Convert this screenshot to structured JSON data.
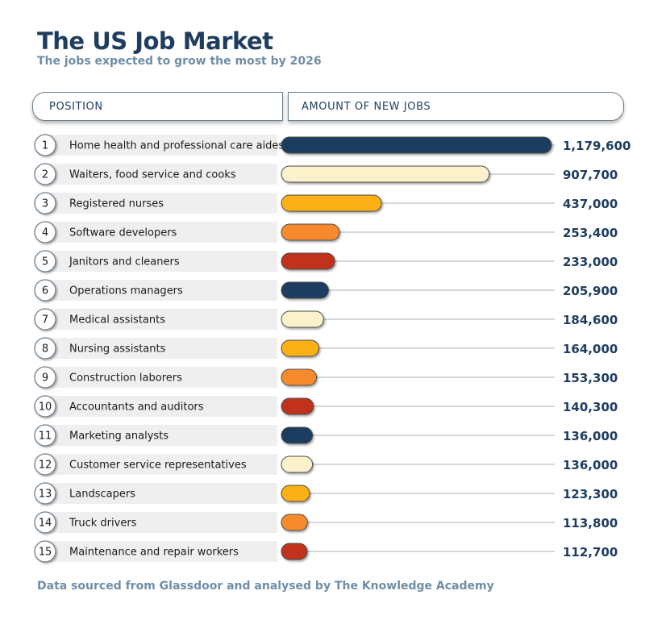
{
  "title": "The US Job Market",
  "subtitle": "The jobs expected to grow the most by 2026",
  "headers": {
    "position": "POSITION",
    "amount": "AMOUNT OF NEW JOBS"
  },
  "footer": "Data sourced from Glassdoor and analysed by The Knowledge Academy",
  "colors": {
    "navy": "#1f3d5f",
    "cream": "#fbf2cc",
    "gold": "#fbb116",
    "orange": "#f88a2e",
    "red": "#c0311f",
    "row_band": "#efefef",
    "value_text": "#1e3d5f"
  },
  "chart_data": {
    "type": "bar",
    "orientation": "horizontal",
    "title": "The US Job Market",
    "subtitle": "The jobs expected to grow the most by 2026",
    "rank_labels": [
      "1",
      "2",
      "3",
      "4",
      "5",
      "6",
      "7",
      "8",
      "9",
      "10",
      "11",
      "12",
      "13",
      "14",
      "15"
    ],
    "categories": [
      "Home health and professional care aides",
      "Waiters, food service and cooks",
      "Registered nurses",
      "Software developers",
      "Janitors and cleaners",
      "Operations managers",
      "Medical assistants",
      "Nursing assistants",
      "Construction laborers",
      "Accountants and auditors",
      "Marketing analysts",
      "Customer service representatives",
      "Landscapers",
      "Truck drivers",
      "Maintenance and repair workers"
    ],
    "values": [
      1179600,
      907700,
      437000,
      253400,
      233000,
      205900,
      184600,
      164000,
      153300,
      140300,
      136000,
      136000,
      123300,
      113800,
      112700
    ],
    "value_labels": [
      "1,179,600",
      "907,700",
      "437,000",
      "253,400",
      "233,000",
      "205,900",
      "184,600",
      "164,000",
      "153,300",
      "140,300",
      "136,000",
      "136,000",
      "123,300",
      "113,800",
      "112,700"
    ],
    "bar_colors": [
      "#1f3d5f",
      "#fbf2cc",
      "#fbb116",
      "#f88a2e",
      "#c0311f",
      "#1f3d5f",
      "#fbf2cc",
      "#fbb116",
      "#f88a2e",
      "#c0311f",
      "#1f3d5f",
      "#fbf2cc",
      "#fbb116",
      "#f88a2e",
      "#c0311f"
    ],
    "xlim": [
      0,
      1179600
    ],
    "grid": false,
    "legend": "none"
  }
}
